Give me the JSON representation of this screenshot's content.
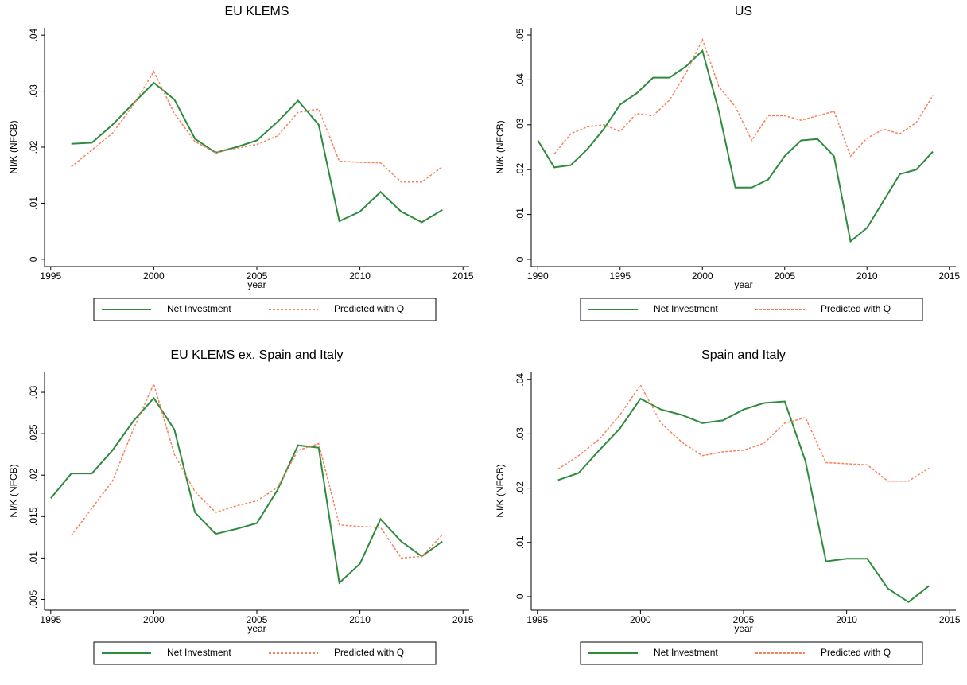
{
  "chart_data": [
    {
      "type": "line",
      "title": "EU KLEMS",
      "y_label": "NI/K (NFCB)",
      "x_label": "year",
      "x": [
        1996,
        1997,
        1998,
        1999,
        2000,
        2001,
        2002,
        2003,
        2004,
        2005,
        2006,
        2007,
        2008,
        2009,
        2010,
        2011,
        2012,
        2013,
        2014
      ],
      "xlim": [
        1994.7,
        2015.3
      ],
      "xticks": [
        1995,
        2000,
        2005,
        2010,
        2015
      ],
      "ylim": [
        -0.0013,
        0.0413
      ],
      "yticks": [
        0,
        {
          "value": 0.01,
          "label": ".01"
        },
        {
          "value": 0.02,
          "label": ".02"
        },
        {
          "value": 0.03,
          "label": ".03"
        },
        {
          "value": 0.04,
          "label": ".04"
        }
      ],
      "legend": "bottom",
      "series": [
        {
          "name": "Net Investment",
          "color": "#2e8b3e",
          "line_style": "solid",
          "values": [
            0.0206,
            0.0208,
            0.024,
            0.0278,
            0.0315,
            0.0285,
            0.0215,
            0.019,
            0.02,
            0.0212,
            0.0245,
            0.0283,
            0.024,
            0.0068,
            0.0085,
            0.012,
            0.0085,
            0.0066,
            0.0088
          ]
        },
        {
          "name": "Predicted with Q",
          "color": "#f4825c",
          "line_style": "dash",
          "values": [
            0.0165,
            0.0195,
            0.0225,
            0.0275,
            0.0335,
            0.026,
            0.021,
            0.019,
            0.0198,
            0.0205,
            0.022,
            0.0262,
            0.0268,
            0.0175,
            0.0173,
            0.0172,
            0.0138,
            0.0138,
            0.0165
          ]
        }
      ]
    },
    {
      "type": "line",
      "title": "US",
      "y_label": "NI/K (NFCB)",
      "x_label": "year",
      "x": [
        1990,
        1991,
        1992,
        1993,
        1994,
        1995,
        1996,
        1997,
        1998,
        1999,
        2000,
        2001,
        2002,
        2003,
        2004,
        2005,
        2006,
        2007,
        2008,
        2009,
        2010,
        2011,
        2012,
        2013,
        2014
      ],
      "xlim": [
        1989.6,
        2015.4
      ],
      "xticks": [
        1990,
        1995,
        2000,
        2005,
        2010,
        2015
      ],
      "ylim": [
        -0.0016,
        0.0516
      ],
      "yticks": [
        0,
        {
          "value": 0.01,
          "label": ".01"
        },
        {
          "value": 0.02,
          "label": ".02"
        },
        {
          "value": 0.03,
          "label": ".03"
        },
        {
          "value": 0.04,
          "label": ".04"
        },
        {
          "value": 0.05,
          "label": ".05"
        }
      ],
      "legend": "bottom",
      "series": [
        {
          "name": "Net Investment",
          "color": "#2e8b3e",
          "line_style": "solid",
          "values": [
            0.0265,
            0.0205,
            0.021,
            0.0245,
            0.029,
            0.0345,
            0.037,
            0.0405,
            0.0405,
            0.043,
            0.0465,
            0.033,
            0.016,
            0.016,
            0.0178,
            0.023,
            0.0265,
            0.0268,
            0.023,
            0.004,
            0.007,
            0.013,
            0.019,
            0.02,
            0.024
          ]
        },
        {
          "name": "Predicted with Q",
          "color": "#f4825c",
          "line_style": "dash",
          "values": [
            null,
            0.0235,
            0.028,
            0.0295,
            0.03,
            0.0285,
            0.0325,
            0.032,
            0.0355,
            0.0415,
            0.049,
            0.0385,
            0.034,
            0.0265,
            0.032,
            0.032,
            0.031,
            0.032,
            0.033,
            0.023,
            0.027,
            0.029,
            0.028,
            0.0305,
            0.0365
          ]
        }
      ]
    },
    {
      "type": "line",
      "title": "EU KLEMS ex. Spain and Italy",
      "y_label": "NI/K (NFCB)",
      "x_label": "year",
      "x": [
        1995,
        1996,
        1997,
        1998,
        1999,
        2000,
        2001,
        2002,
        2003,
        2004,
        2005,
        2006,
        2007,
        2008,
        2009,
        2010,
        2011,
        2012,
        2013,
        2014
      ],
      "xlim": [
        1994.7,
        2015.3
      ],
      "xticks": [
        1995,
        2000,
        2005,
        2010,
        2015
      ],
      "ylim": [
        0.0037,
        0.0325
      ],
      "yticks": [
        {
          "value": 0.005,
          "label": ".005"
        },
        {
          "value": 0.01,
          "label": ".01"
        },
        {
          "value": 0.015,
          "label": ".015"
        },
        {
          "value": 0.02,
          "label": ".02"
        },
        {
          "value": 0.025,
          "label": ".025"
        },
        {
          "value": 0.03,
          "label": ".03"
        }
      ],
      "legend": "bottom",
      "series": [
        {
          "name": "Net Investment",
          "color": "#2e8b3e",
          "line_style": "solid",
          "values": [
            0.0172,
            0.0202,
            0.0202,
            0.023,
            0.0265,
            0.0293,
            0.0255,
            0.0155,
            0.0129,
            0.0135,
            0.0142,
            0.0182,
            0.0236,
            0.0233,
            0.007,
            0.0093,
            0.0147,
            0.012,
            0.0102,
            0.012
          ]
        },
        {
          "name": "Predicted with Q",
          "color": "#f4825c",
          "line_style": "dash",
          "values": [
            null,
            0.0127,
            0.016,
            0.0193,
            0.0255,
            0.031,
            0.0225,
            0.018,
            0.0155,
            0.0163,
            0.0169,
            0.0185,
            0.023,
            0.0238,
            0.014,
            0.0138,
            0.0137,
            0.01,
            0.0102,
            0.0128
          ]
        }
      ]
    },
    {
      "type": "line",
      "title": "Spain and Italy",
      "y_label": "NI/K (NFCB)",
      "x_label": "year",
      "x": [
        1996,
        1997,
        1998,
        1999,
        2000,
        2001,
        2002,
        2003,
        2004,
        2005,
        2006,
        2007,
        2008,
        2009,
        2010,
        2011,
        2012,
        2013,
        2014
      ],
      "xlim": [
        1994.7,
        2015.3
      ],
      "xticks": [
        1995,
        2000,
        2005,
        2010,
        2015
      ],
      "ylim": [
        -0.0025,
        0.0415
      ],
      "yticks": [
        0,
        {
          "value": 0.01,
          "label": ".01"
        },
        {
          "value": 0.02,
          "label": ".02"
        },
        {
          "value": 0.03,
          "label": ".03"
        },
        {
          "value": 0.04,
          "label": ".04"
        }
      ],
      "legend": "bottom",
      "series": [
        {
          "name": "Net Investment",
          "color": "#2e8b3e",
          "line_style": "solid",
          "values": [
            0.0215,
            0.0228,
            0.027,
            0.031,
            0.0365,
            0.0345,
            0.0335,
            0.032,
            0.0325,
            0.0345,
            0.0357,
            0.036,
            0.025,
            0.0065,
            0.007,
            0.007,
            0.0015,
            -0.001,
            0.002
          ]
        },
        {
          "name": "Predicted with Q",
          "color": "#f4825c",
          "line_style": "dash",
          "values": [
            0.0235,
            0.026,
            0.029,
            0.0335,
            0.039,
            0.032,
            0.0285,
            0.026,
            0.0267,
            0.027,
            0.0283,
            0.032,
            0.033,
            0.0247,
            0.0245,
            0.0243,
            0.0213,
            0.0213,
            0.0237
          ]
        }
      ]
    }
  ]
}
